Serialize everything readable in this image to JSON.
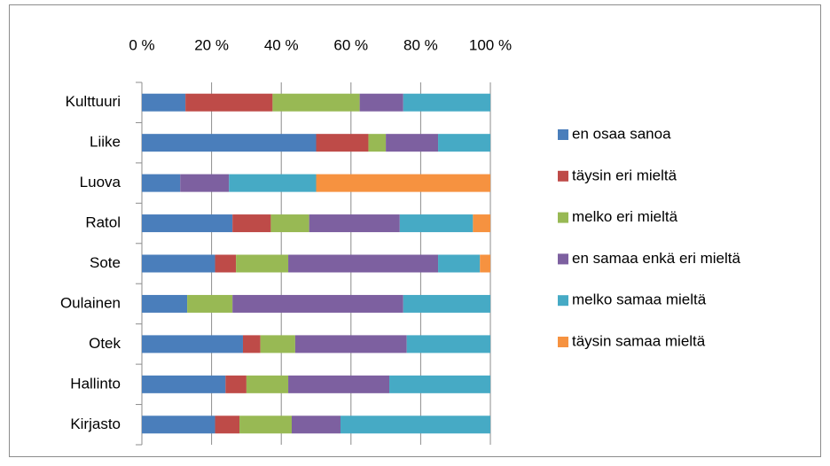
{
  "chart_data": {
    "type": "stacked_bar_horizontal",
    "categories": [
      "Kulttuuri",
      "Liike",
      "Luova",
      "Ratol",
      "Sote",
      "Oulainen",
      "Otek",
      "Hallinto",
      "Kirjasto"
    ],
    "series": [
      {
        "name": "en osaa sanoa",
        "color": "#4a7ebb",
        "values": [
          12.5,
          50,
          11,
          26,
          21,
          13,
          29,
          24,
          21
        ]
      },
      {
        "name": "täysin eri mieltä",
        "color": "#be4b48",
        "values": [
          25,
          15,
          0,
          11,
          6,
          0,
          5,
          6,
          7
        ]
      },
      {
        "name": "melko eri mieltä",
        "color": "#98b954",
        "values": [
          25,
          5,
          0,
          11,
          15,
          13,
          10,
          12,
          15
        ]
      },
      {
        "name": "en samaa enkä eri mieltä",
        "color": "#7d60a0",
        "values": [
          12.5,
          15,
          14,
          26,
          43,
          49,
          32,
          29,
          14
        ]
      },
      {
        "name": "melko samaa mieltä",
        "color": "#46aac5",
        "values": [
          25,
          15,
          25,
          21,
          12,
          25,
          24,
          29,
          43
        ]
      },
      {
        "name": "täysin samaa mieltä",
        "color": "#f69240",
        "values": [
          0,
          0,
          50,
          5,
          3,
          0,
          0,
          0,
          0
        ]
      }
    ],
    "xlim": [
      0,
      100
    ],
    "xticks": [
      {
        "value": 0,
        "label": "0 %"
      },
      {
        "value": 20,
        "label": "20 %"
      },
      {
        "value": 40,
        "label": "40 %"
      },
      {
        "value": 60,
        "label": "60 %"
      },
      {
        "value": 80,
        "label": "80 %"
      },
      {
        "value": 100,
        "label": "100 %"
      }
    ],
    "grid": true,
    "legend": "right"
  }
}
